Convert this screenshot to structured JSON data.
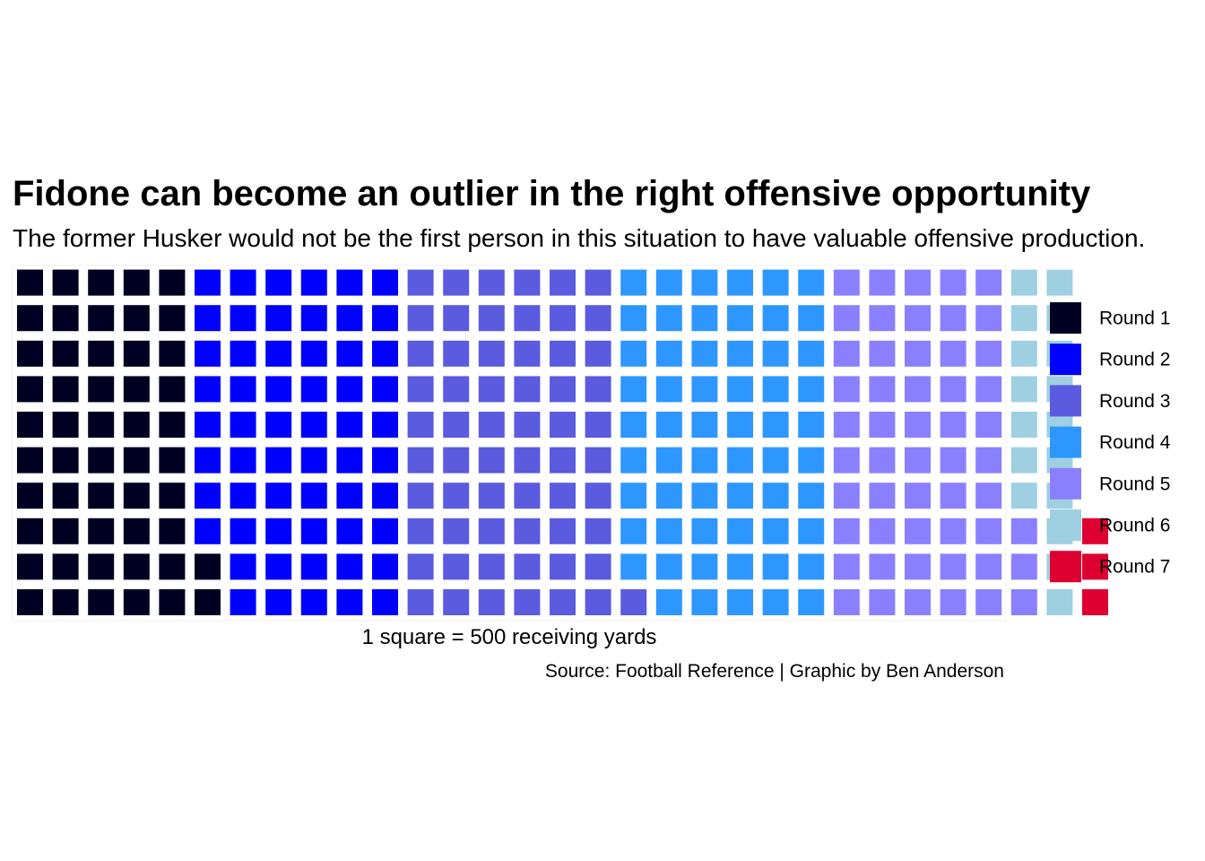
{
  "chart_data": {
    "type": "waffle",
    "title": "Fidone can become an outlier in the right offensive opportunity",
    "subtitle": "The former Husker would not be the first person in this situation to have valuable offensive production.",
    "xlabel": "1 square = 500 receiving yards",
    "caption": "Source: Football Reference | Graphic by Ben Anderson",
    "unit_value": 500,
    "unit_label": "receiving yards",
    "rows": 10,
    "fill_order": "column-major, bottom to top",
    "legend_position": "right",
    "categories": [
      "Round 1",
      "Round 2",
      "Round 3",
      "Round 4",
      "Round 5",
      "Round 6",
      "Round 7"
    ],
    "series": [
      {
        "name": "Round 1",
        "squares": 52,
        "color": "#000022"
      },
      {
        "name": "Round 2",
        "squares": 58,
        "color": "#0000FF"
      },
      {
        "name": "Round 3",
        "squares": 61,
        "color": "#5B5BE0"
      },
      {
        "name": "Round 4",
        "squares": 59,
        "color": "#2E97FF"
      },
      {
        "name": "Round 5",
        "squares": 53,
        "color": "#8A80FF"
      },
      {
        "name": "Round 6",
        "squares": 17,
        "color": "#9ED0E2"
      },
      {
        "name": "Round 7",
        "squares": 3,
        "color": "#DD0030"
      }
    ]
  }
}
